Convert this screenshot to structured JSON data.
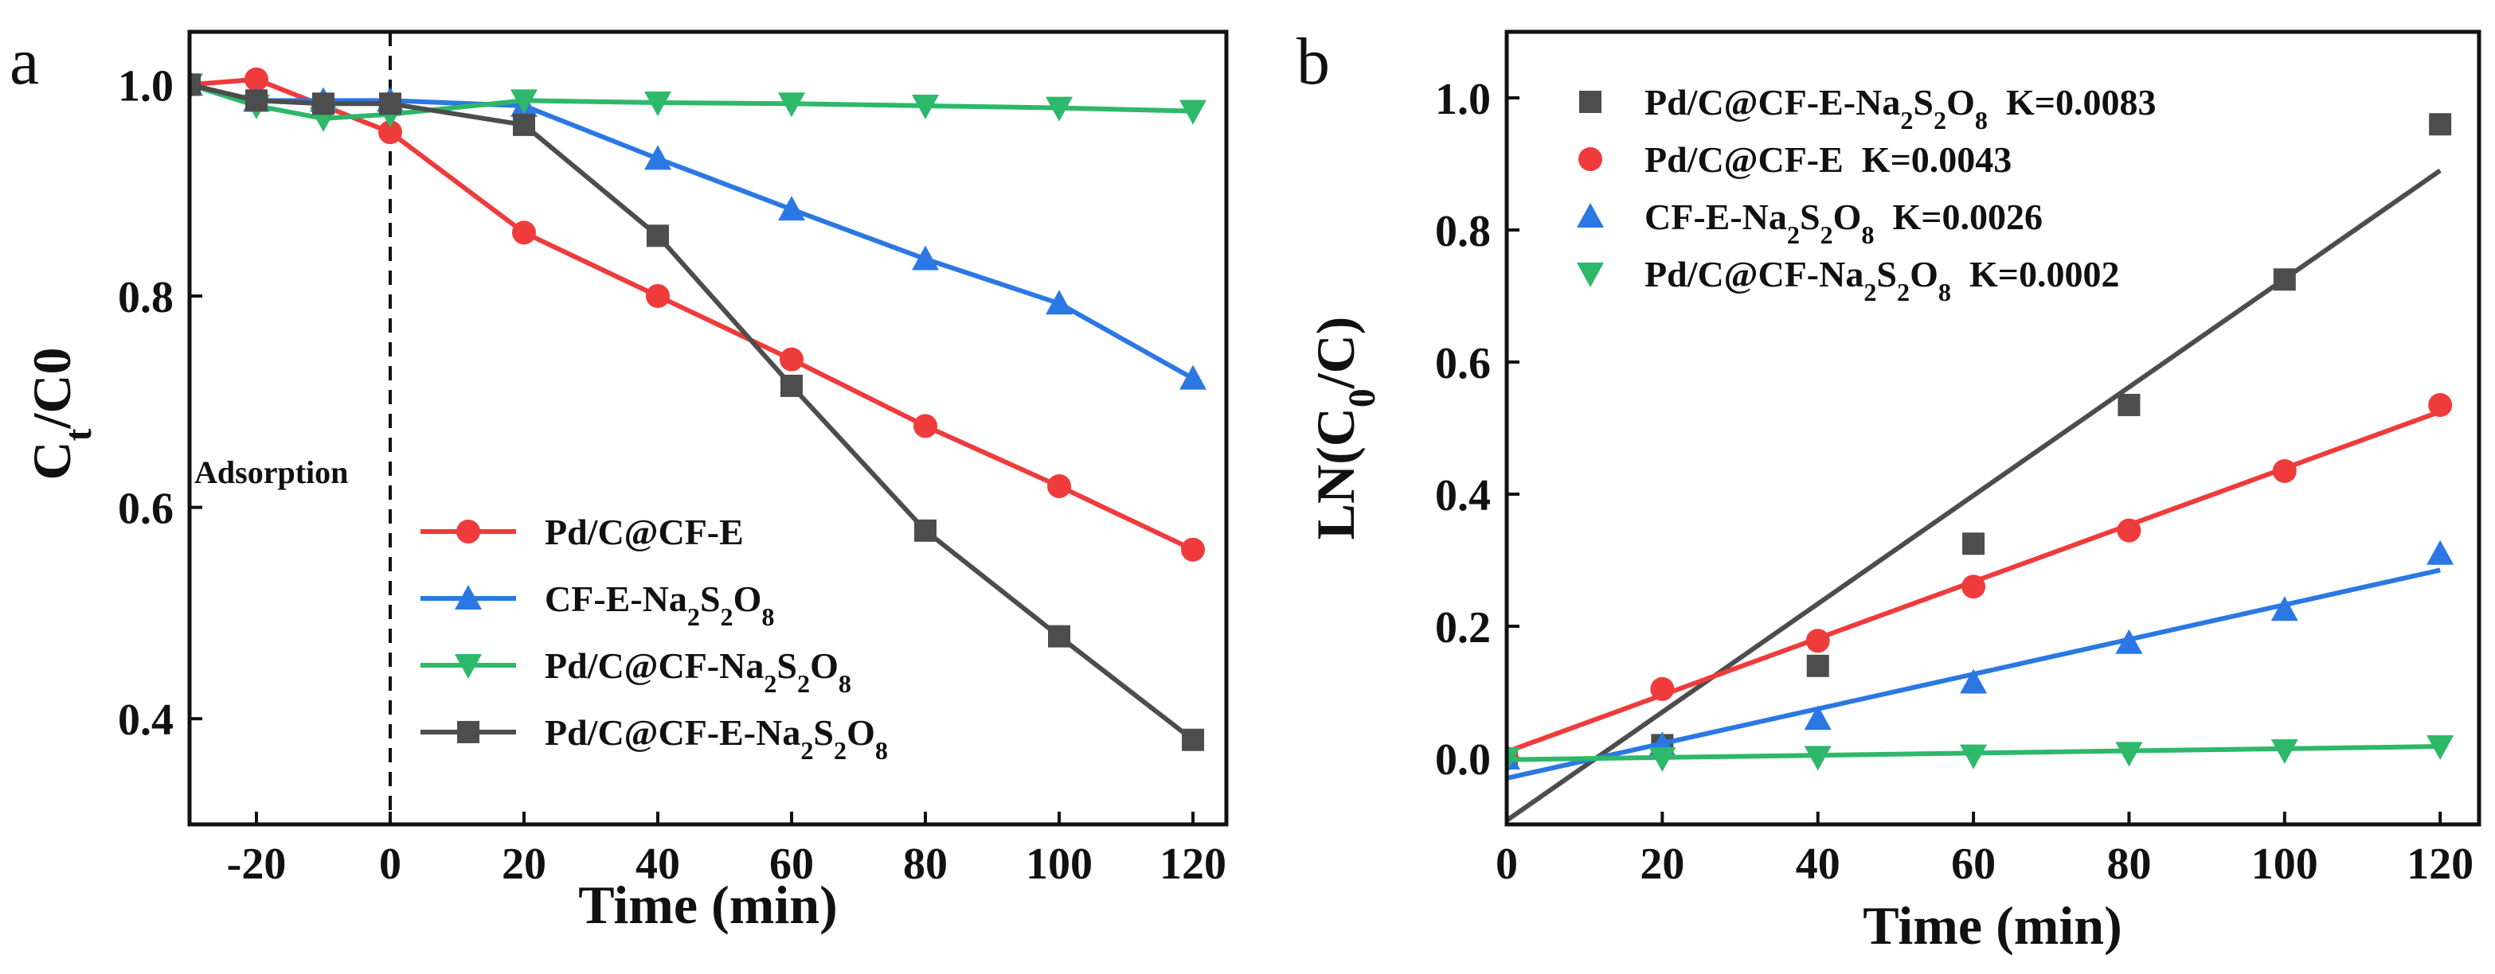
{
  "figure": {
    "colors": {
      "red": "#ef3b3b",
      "blue": "#2b78e4",
      "green": "#2db86a",
      "gray": "#4d4d4d"
    }
  },
  "chart_data": [
    {
      "type": "line",
      "panel": "a",
      "title": "",
      "xlabel": "Time (min)",
      "ylabel": "Ct/C0",
      "ylabel_main": "C",
      "ylabel_sub": "t",
      "ylabel_rest": "/C0",
      "xlim": [
        -30,
        125
      ],
      "ylim": [
        0.3,
        1.05
      ],
      "xticks": [
        -20,
        0,
        20,
        40,
        60,
        80,
        100,
        120
      ],
      "xtick_labels": [
        "-20",
        "0",
        "20",
        "40",
        "60",
        "80",
        "100",
        "120"
      ],
      "yticks": [
        0.4,
        0.6,
        0.8,
        1.0
      ],
      "ytick_labels": [
        "0.4",
        "0.6",
        "0.8",
        "1.0"
      ],
      "grid": false,
      "legend_position": "bottom-left",
      "annotation": "Adsorption",
      "vline_x": 0,
      "x": [
        -30,
        -20,
        -10,
        0,
        20,
        40,
        60,
        80,
        100,
        120
      ],
      "series": [
        {
          "name": "Pd/C@CF-E",
          "legend_parts": [
            {
              "t": "Pd/C@CF-E",
              "sub": false
            }
          ],
          "marker": "circle",
          "color": "#ef3b3b",
          "values": [
            1.0,
            1.005,
            0.98,
            0.955,
            0.86,
            0.8,
            0.74,
            0.677,
            0.62,
            0.56
          ]
        },
        {
          "name": "CF-E-Na2S2O8",
          "legend_parts": [
            {
              "t": "CF-E-Na",
              "sub": false
            },
            {
              "t": "2",
              "sub": true
            },
            {
              "t": "S",
              "sub": false
            },
            {
              "t": "2",
              "sub": true
            },
            {
              "t": "O",
              "sub": false
            },
            {
              "t": "8",
              "sub": true
            }
          ],
          "marker": "triangle-up",
          "color": "#2b78e4",
          "values": [
            1.0,
            0.985,
            0.985,
            0.985,
            0.98,
            0.93,
            0.882,
            0.835,
            0.793,
            0.722
          ]
        },
        {
          "name": "Pd/C@CF-Na2S2O8",
          "legend_parts": [
            {
              "t": "Pd/C@CF-Na",
              "sub": false
            },
            {
              "t": "2",
              "sub": true
            },
            {
              "t": "S",
              "sub": false
            },
            {
              "t": "2",
              "sub": true
            },
            {
              "t": "O",
              "sub": false
            },
            {
              "t": "8",
              "sub": true
            }
          ],
          "marker": "triangle-down",
          "color": "#2db86a",
          "values": [
            1.0,
            0.98,
            0.968,
            0.972,
            0.985,
            0.983,
            0.982,
            0.98,
            0.978,
            0.975
          ]
        },
        {
          "name": "Pd/C@CF-E-Na2S2O8",
          "legend_parts": [
            {
              "t": "Pd/C@CF-E-Na",
              "sub": false
            },
            {
              "t": "2",
              "sub": true
            },
            {
              "t": "S",
              "sub": false
            },
            {
              "t": "2",
              "sub": true
            },
            {
              "t": "O",
              "sub": false
            },
            {
              "t": "8",
              "sub": true
            }
          ],
          "marker": "square",
          "color": "#4d4d4d",
          "values": [
            1.0,
            0.985,
            0.982,
            0.982,
            0.962,
            0.857,
            0.715,
            0.578,
            0.478,
            0.38
          ]
        }
      ]
    },
    {
      "type": "scatter",
      "panel": "b",
      "title": "",
      "xlabel": "Time (min)",
      "ylabel": "LN(C0/C)",
      "ylabel_main": "LN(C",
      "ylabel_sub": "0",
      "ylabel_rest": "/C)",
      "xlim": [
        0,
        125
      ],
      "ylim": [
        -0.1,
        1.1
      ],
      "xticks": [
        0,
        20,
        40,
        60,
        80,
        100,
        120
      ],
      "xtick_labels": [
        "0",
        "20",
        "40",
        "60",
        "80",
        "100",
        "120"
      ],
      "yticks": [
        0.0,
        0.2,
        0.4,
        0.6,
        0.8,
        1.0
      ],
      "ytick_labels": [
        "0.0",
        "0.2",
        "0.4",
        "0.6",
        "0.8",
        "1.0"
      ],
      "grid": false,
      "legend_position": "top-left",
      "x": [
        0,
        20,
        40,
        60,
        80,
        100,
        120
      ],
      "series": [
        {
          "name": "Pd/C@CF-E-Na2S2O8",
          "legend_parts": [
            {
              "t": "Pd/C@CF-E-Na",
              "sub": false
            },
            {
              "t": "2",
              "sub": true
            },
            {
              "t": "S",
              "sub": false
            },
            {
              "t": "2",
              "sub": true
            },
            {
              "t": "O",
              "sub": false
            },
            {
              "t": "8",
              "sub": true
            }
          ],
          "k_label": "K=0.0083",
          "marker": "square",
          "color": "#4d4d4d",
          "values": [
            0.0,
            0.02,
            0.14,
            0.325,
            0.535,
            0.725,
            0.96
          ],
          "fit": {
            "x": [
              -5,
              120
            ],
            "y": [
              -0.135,
              0.89
            ]
          }
        },
        {
          "name": "Pd/C@CF-E",
          "legend_parts": [
            {
              "t": "Pd/C@CF-E",
              "sub": false
            }
          ],
          "k_label": "K=0.0043",
          "marker": "circle",
          "color": "#ef3b3b",
          "values": [
            0.0,
            0.105,
            0.178,
            0.26,
            0.345,
            0.435,
            0.535
          ],
          "fit": {
            "x": [
              0,
              120
            ],
            "y": [
              0.01,
              0.525
            ]
          }
        },
        {
          "name": "CF-E-Na2S2O8",
          "legend_parts": [
            {
              "t": "CF-E-Na",
              "sub": false
            },
            {
              "t": "2",
              "sub": true
            },
            {
              "t": "S",
              "sub": false
            },
            {
              "t": "2",
              "sub": true
            },
            {
              "t": "O",
              "sub": false
            },
            {
              "t": "8",
              "sub": true
            }
          ],
          "k_label": "K=0.0026",
          "marker": "triangle-up",
          "color": "#2b78e4",
          "values": [
            0.0,
            0.02,
            0.06,
            0.115,
            0.175,
            0.225,
            0.31
          ],
          "fit": {
            "x": [
              0,
              120
            ],
            "y": [
              -0.03,
              0.285
            ]
          }
        },
        {
          "name": "Pd/C@CF-Na2S2O8",
          "legend_parts": [
            {
              "t": "Pd/C@CF-Na",
              "sub": false
            },
            {
              "t": "2",
              "sub": true
            },
            {
              "t": "S",
              "sub": false
            },
            {
              "t": "2",
              "sub": true
            },
            {
              "t": "O",
              "sub": false
            },
            {
              "t": "8",
              "sub": true
            }
          ],
          "k_label": "K=0.0002",
          "marker": "triangle-down",
          "color": "#2db86a",
          "values": [
            0.0,
            0.0,
            0.002,
            0.004,
            0.008,
            0.012,
            0.018
          ],
          "fit": {
            "x": [
              0,
              120
            ],
            "y": [
              -0.002,
              0.018
            ]
          }
        }
      ]
    }
  ]
}
